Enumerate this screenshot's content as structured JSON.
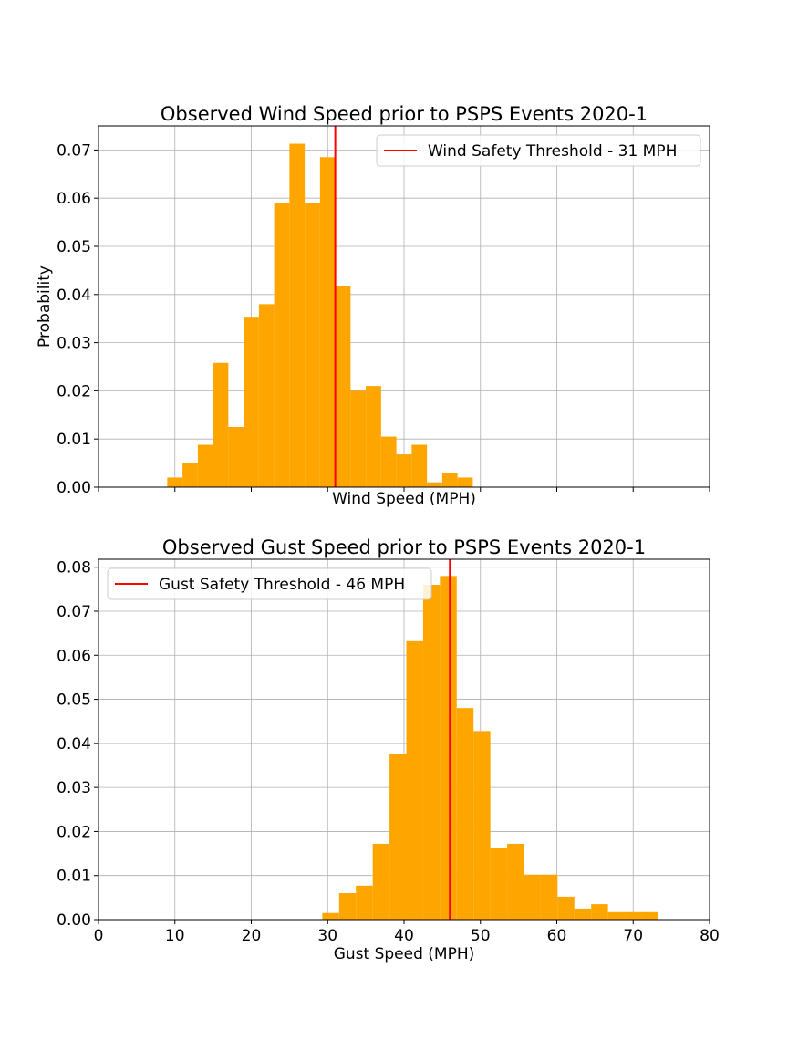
{
  "colors": {
    "bar": "#FFA500",
    "threshold_line": "#FF0000",
    "grid": "#b0b0b0",
    "axis": "#000000"
  },
  "chart_data": [
    {
      "type": "bar",
      "title": "Observed Wind Speed prior to PSPS Events 2020-1",
      "xlabel": "Wind Speed (MPH)",
      "ylabel": "Probability",
      "xlim": [
        0,
        80
      ],
      "ylim": [
        0,
        0.075
      ],
      "xticks": [
        0,
        10,
        20,
        30,
        40,
        50,
        60,
        70,
        80
      ],
      "yticks": [
        0.0,
        0.01,
        0.02,
        0.03,
        0.04,
        0.05,
        0.06,
        0.07
      ],
      "ytick_labels": [
        "0.00",
        "0.01",
        "0.02",
        "0.03",
        "0.04",
        "0.05",
        "0.06",
        "0.07"
      ],
      "show_xtick_labels": false,
      "grid": true,
      "legend_position": "top-right",
      "threshold": {
        "label": "Wind Safety Threshold - 31 MPH",
        "x": 31
      },
      "bin_edges": [
        9,
        11,
        13,
        15,
        17,
        19,
        21,
        23,
        25,
        27,
        29,
        31,
        33,
        35,
        37,
        39,
        41,
        43,
        45,
        47,
        49
      ],
      "values": [
        0.002,
        0.005,
        0.0088,
        0.0258,
        0.0125,
        0.0352,
        0.038,
        0.059,
        0.0713,
        0.059,
        0.0685,
        0.0417,
        0.02,
        0.021,
        0.0105,
        0.0068,
        0.0088,
        0.001,
        0.0029,
        0.002
      ]
    },
    {
      "type": "bar",
      "title": "Observed Gust Speed prior to PSPS Events 2020-1",
      "xlabel": "Gust Speed (MPH)",
      "ylabel": "",
      "xlim": [
        0,
        80
      ],
      "ylim": [
        0,
        0.0818
      ],
      "xticks": [
        0,
        10,
        20,
        30,
        40,
        50,
        60,
        70,
        80
      ],
      "yticks": [
        0.0,
        0.01,
        0.02,
        0.03,
        0.04,
        0.05,
        0.06,
        0.07,
        0.08
      ],
      "ytick_labels": [
        "0.00",
        "0.01",
        "0.02",
        "0.03",
        "0.04",
        "0.05",
        "0.06",
        "0.07",
        "0.08"
      ],
      "show_xtick_labels": true,
      "grid": true,
      "legend_position": "top-left",
      "threshold": {
        "label": "Gust Safety Threshold - 46 MPH",
        "x": 46
      },
      "bin_edges": [
        29.3,
        31.5,
        33.7,
        35.9,
        38.1,
        40.3,
        42.5,
        44.7,
        46.9,
        49.1,
        51.3,
        53.5,
        55.7,
        57.9,
        60.1,
        62.3,
        64.5,
        66.7,
        68.9,
        71.1,
        73.3
      ],
      "values": [
        0.0015,
        0.006,
        0.0077,
        0.0172,
        0.0376,
        0.0632,
        0.076,
        0.078,
        0.048,
        0.0428,
        0.0163,
        0.0172,
        0.0102,
        0.0102,
        0.0052,
        0.0025,
        0.0035,
        0.0017,
        0.0017,
        0.0017
      ]
    }
  ]
}
